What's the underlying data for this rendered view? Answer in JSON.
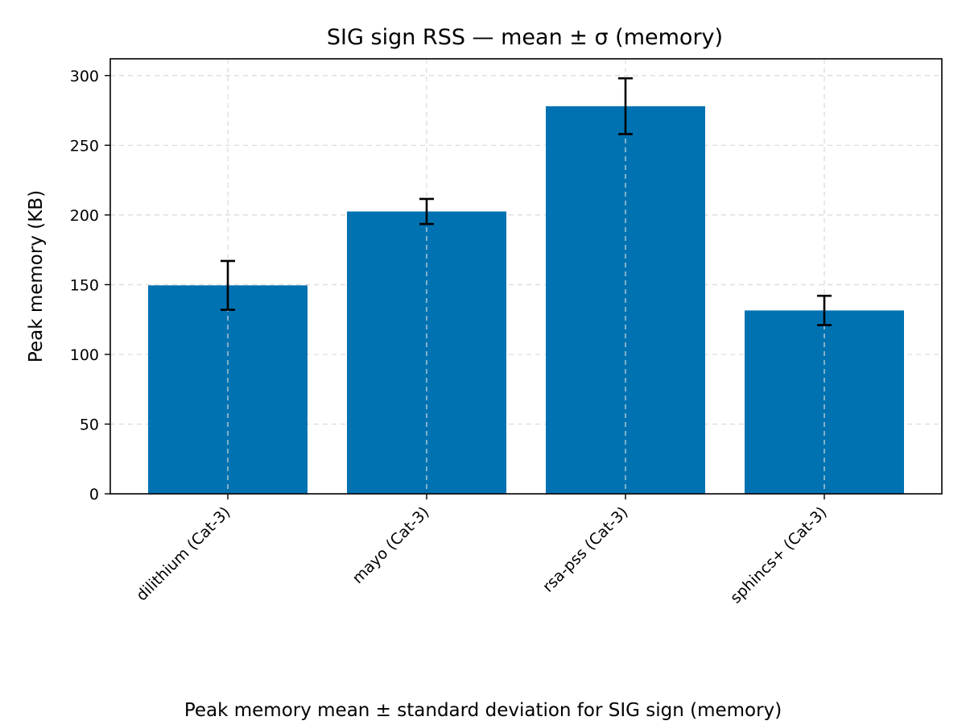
{
  "chart_data": {
    "type": "bar",
    "title": "SIG sign RSS — mean ± σ (memory)",
    "xlabel": "",
    "ylabel": "Peak memory (KB)",
    "categories": [
      "dilithium (Cat-3)",
      "mayo (Cat-3)",
      "rsa-pss (Cat-3)",
      "sphincs+ (Cat-3)"
    ],
    "values": [
      149.5,
      202.5,
      278,
      131.5
    ],
    "errors": [
      17.5,
      9,
      20,
      10.5
    ],
    "ylim": [
      0,
      312
    ],
    "yticks": [
      0,
      50,
      100,
      150,
      200,
      250,
      300
    ],
    "grid": true,
    "bar_color": "#0072b2",
    "caption": "Peak memory mean ± standard deviation for SIG sign (memory)"
  }
}
